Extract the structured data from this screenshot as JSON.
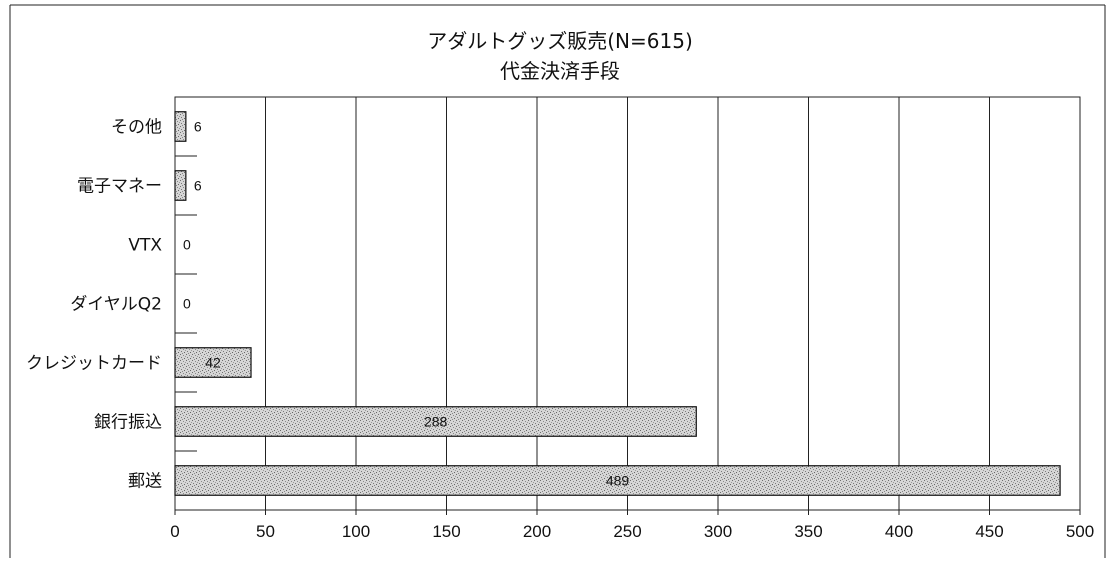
{
  "chart_data": {
    "type": "bar",
    "orientation": "horizontal",
    "title": "アダルトグッズ販売(N=615)",
    "subtitle": "代金決済手段",
    "categories": [
      "その他",
      "電子マネー",
      "VTX",
      "ダイヤルQ2",
      "クレジットカード",
      "銀行振込",
      "郵送"
    ],
    "values": [
      6,
      6,
      0,
      0,
      42,
      288,
      489
    ],
    "data_labels": [
      "6",
      "6",
      "0",
      "0",
      "42",
      "288",
      "489"
    ],
    "xlim": [
      0,
      500
    ],
    "x_ticks": [
      "0",
      "50",
      "100",
      "150",
      "200",
      "250",
      "300",
      "350",
      "400",
      "450",
      "500"
    ],
    "grid": "vertical",
    "legend": "none",
    "colors": {
      "bar_fill": "#d4d4d4",
      "bar_stroke": "#111111",
      "grid": "#222222",
      "background": "#ffffff"
    }
  }
}
